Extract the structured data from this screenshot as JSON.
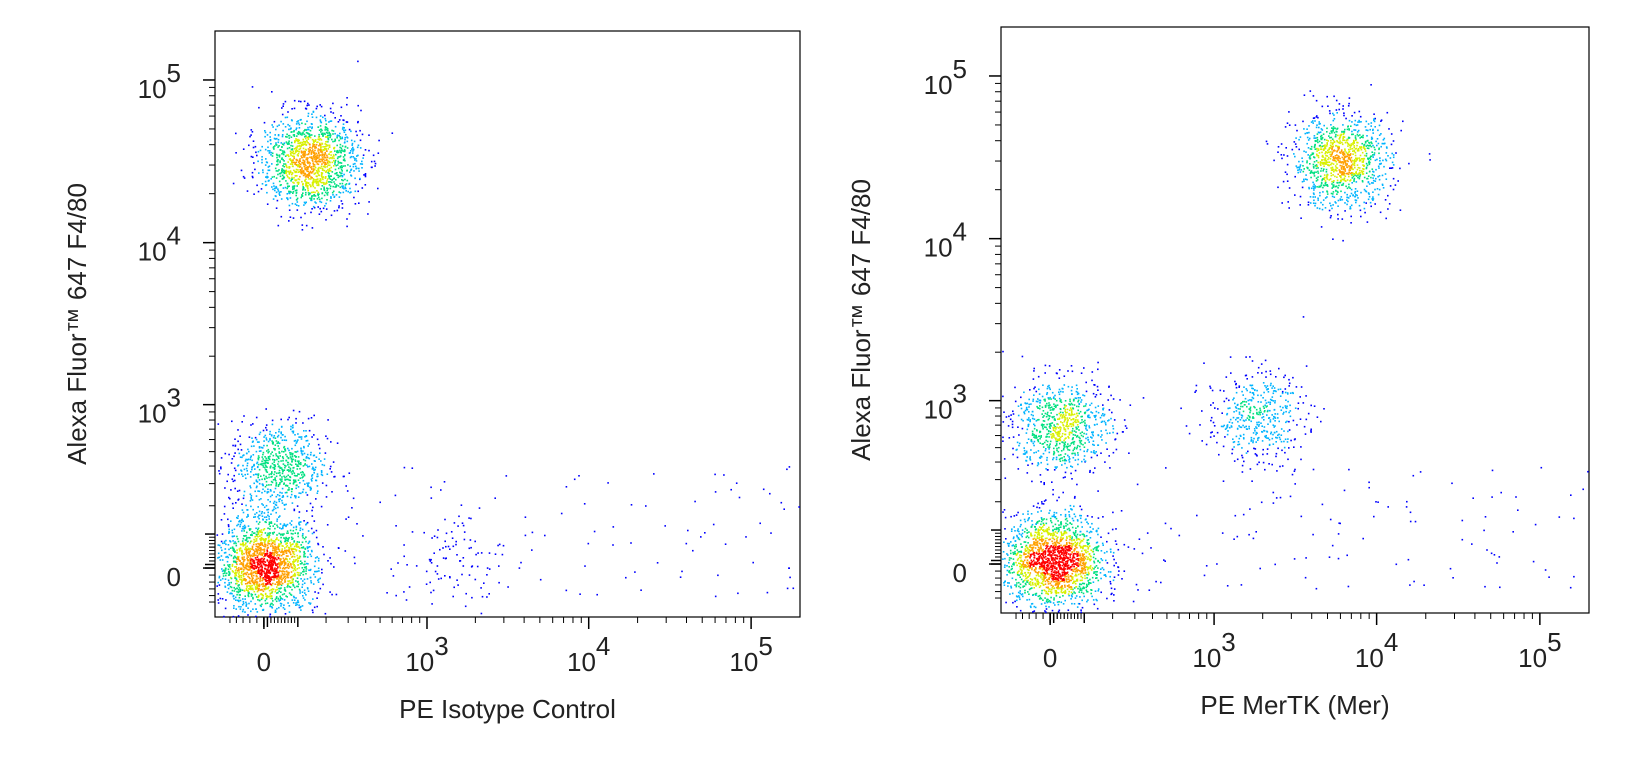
{
  "chart_data": [
    {
      "type": "scatter",
      "style": "density-colored flow cytometry dot plot",
      "xlabel": "PE Isotype Control",
      "ylabel": "Alexa Fluor™ 647 F4/80",
      "x_scale": "biexponential",
      "y_scale": "biexponential",
      "xlim": [
        -150,
        200000
      ],
      "ylim": [
        -150,
        200000
      ],
      "x_ticks": [
        {
          "value": 0,
          "base": "0",
          "exp": ""
        },
        {
          "value": 1000,
          "base": "10",
          "exp": "3"
        },
        {
          "value": 10000,
          "base": "10",
          "exp": "4"
        },
        {
          "value": 100000,
          "base": "10",
          "exp": "5"
        }
      ],
      "y_ticks": [
        {
          "value": 0,
          "base": "0",
          "exp": ""
        },
        {
          "value": 1000,
          "base": "10",
          "exp": "3"
        },
        {
          "value": 10000,
          "base": "10",
          "exp": "4"
        },
        {
          "value": 100000,
          "base": "10",
          "exp": "5"
        }
      ],
      "populations": [
        {
          "x": 5,
          "y": 10,
          "count": 1800
        },
        {
          "x": 140,
          "y": 32000,
          "count": 1400
        },
        {
          "x": 40,
          "y": 400,
          "count": 700
        },
        {
          "x": 1500,
          "y": 20,
          "count": 90
        }
      ],
      "density_colors": [
        "#0000ff",
        "#00b4ff",
        "#00e080",
        "#d8f000",
        "#ffa000",
        "#ff0000"
      ],
      "grid": false,
      "legend": "none"
    },
    {
      "type": "scatter",
      "style": "density-colored flow cytometry dot plot",
      "xlabel": "PE MerTK (Mer)",
      "ylabel": "Alexa Fluor™ 647 F4/80",
      "x_scale": "biexponential",
      "y_scale": "biexponential",
      "xlim": [
        -150,
        200000
      ],
      "ylim": [
        -150,
        200000
      ],
      "x_ticks": [
        {
          "value": 0,
          "base": "0",
          "exp": ""
        },
        {
          "value": 1000,
          "base": "10",
          "exp": "3"
        },
        {
          "value": 10000,
          "base": "10",
          "exp": "4"
        },
        {
          "value": 100000,
          "base": "10",
          "exp": "5"
        }
      ],
      "y_ticks": [
        {
          "value": 0,
          "base": "0",
          "exp": ""
        },
        {
          "value": 1000,
          "base": "10",
          "exp": "3"
        },
        {
          "value": 10000,
          "base": "10",
          "exp": "4"
        },
        {
          "value": 100000,
          "base": "10",
          "exp": "5"
        }
      ],
      "populations": [
        {
          "x": 10,
          "y": 10,
          "count": 1800
        },
        {
          "x": 6000,
          "y": 30000,
          "count": 1100
        },
        {
          "x": 30,
          "y": 700,
          "count": 800
        },
        {
          "x": 1800,
          "y": 800,
          "count": 450
        }
      ],
      "density_colors": [
        "#0000ff",
        "#00b4ff",
        "#00e080",
        "#d8f000",
        "#ffa000",
        "#ff0000"
      ],
      "grid": false,
      "legend": "none"
    }
  ]
}
